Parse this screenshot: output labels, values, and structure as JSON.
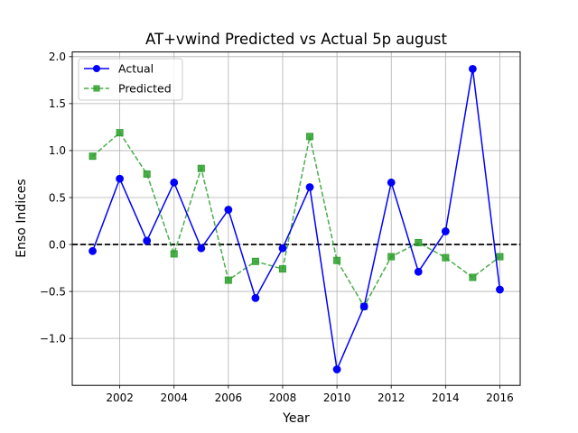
{
  "chart_data": {
    "type": "line",
    "title": "AT+vwind Predicted vs Actual 5p august",
    "xlabel": "Year",
    "ylabel": "Enso Indices",
    "xlim": [
      2000.25,
      2016.75
    ],
    "ylim": [
      -1.5,
      2.05
    ],
    "x_ticks": [
      2002,
      2004,
      2006,
      2008,
      2010,
      2012,
      2014,
      2016
    ],
    "y_ticks": [
      -1.0,
      -0.5,
      0.0,
      0.5,
      1.0,
      1.5,
      2.0
    ],
    "y_tick_labels": [
      "−1.0",
      "−0.5",
      "0.0",
      "0.5",
      "1.0",
      "1.5",
      "2.0"
    ],
    "grid": true,
    "legend_position": "top-left",
    "reference_line": {
      "y": 0,
      "style": "dashed",
      "color": "#000000"
    },
    "x": [
      2001,
      2002,
      2003,
      2004,
      2005,
      2006,
      2007,
      2008,
      2009,
      2010,
      2011,
      2012,
      2013,
      2014,
      2015,
      2016
    ],
    "series": [
      {
        "name": "Actual",
        "color": "#0000ff",
        "line_style": "solid",
        "marker": "circle",
        "values": [
          -0.07,
          0.7,
          0.04,
          0.66,
          -0.04,
          0.37,
          -0.57,
          -0.04,
          0.61,
          -1.33,
          -0.66,
          0.66,
          -0.29,
          0.14,
          1.87,
          -0.48
        ]
      },
      {
        "name": "Predicted",
        "color": "#2ca02c",
        "line_style": "dashed",
        "marker": "square",
        "values": [
          0.94,
          1.19,
          0.75,
          -0.1,
          0.81,
          -0.38,
          -0.18,
          -0.26,
          1.15,
          -0.17,
          -0.66,
          -0.13,
          0.02,
          -0.14,
          -0.35,
          -0.13
        ]
      }
    ]
  }
}
